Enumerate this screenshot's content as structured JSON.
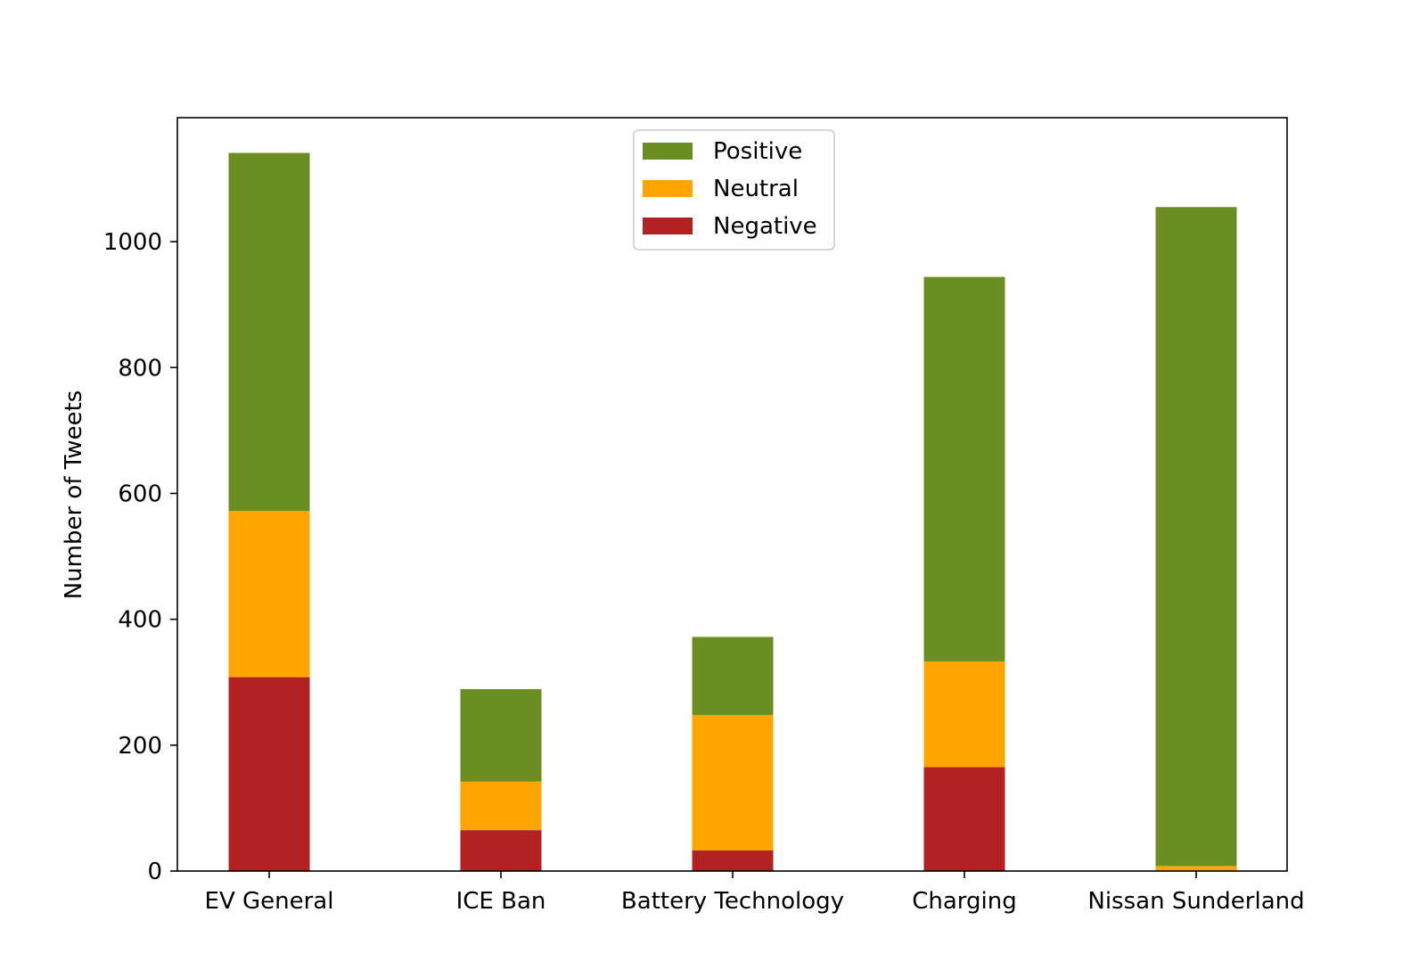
{
  "chart_data": {
    "type": "bar",
    "stacked": true,
    "title": "",
    "xlabel": "",
    "ylabel": "Number of Tweets",
    "categories": [
      "EV General",
      "ICE Ban",
      "Battery Technology",
      "Charging",
      "Nissan Sunderland"
    ],
    "series": [
      {
        "name": "Negative",
        "color": "#b22222",
        "values": [
          308,
          65,
          33,
          165,
          0
        ]
      },
      {
        "name": "Neutral",
        "color": "#ffa500",
        "values": [
          264,
          77,
          215,
          168,
          8
        ]
      },
      {
        "name": "Positive",
        "color": "#6b8e23",
        "values": [
          569,
          147,
          124,
          611,
          1047
        ]
      }
    ],
    "ylim": [
      0,
      1197
    ],
    "yticks": [
      0,
      200,
      400,
      600,
      800,
      1000
    ],
    "grid": false,
    "legend": {
      "placement": "upper-center",
      "order": [
        "Positive",
        "Neutral",
        "Negative"
      ]
    }
  }
}
